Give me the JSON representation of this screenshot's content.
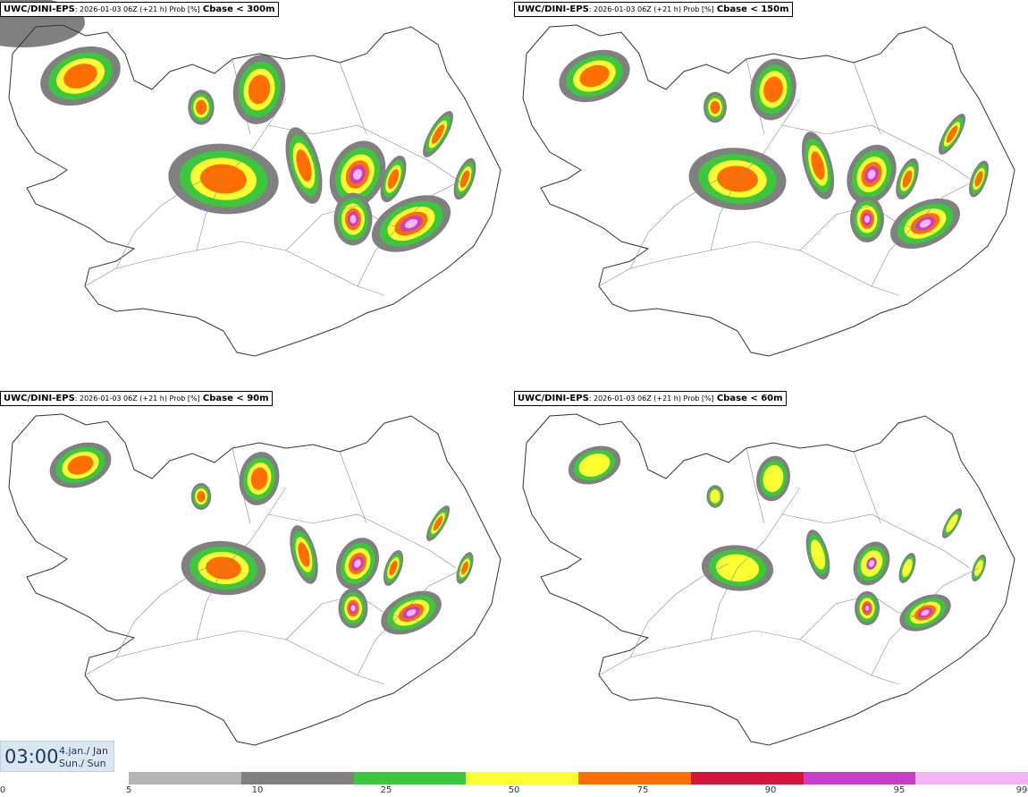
{
  "panels": [
    {
      "model": "UWC/DINI-EPS",
      "run": ": 2026-01-03 06Z (+21 h) Prob [%]",
      "variable": "Cbase < 300m",
      "level": 4
    },
    {
      "model": "UWC/DINI-EPS",
      "run": ": 2026-01-03 06Z (+21 h) Prob [%]",
      "variable": "Cbase < 150m",
      "level": 3
    },
    {
      "model": "UWC/DINI-EPS",
      "run": ": 2026-01-03 06Z (+21 h) Prob [%]",
      "variable": "Cbase < 90m",
      "level": 2
    },
    {
      "model": "UWC/DINI-EPS",
      "run": ": 2026-01-03 06Z (+21 h) Prob [%]",
      "variable": "Cbase < 60m",
      "level": 1
    }
  ],
  "valid_time": {
    "clock": "03:00",
    "date_line1": "4.jan./ Jan",
    "date_line2": "Sun./ Sun"
  },
  "colorbar": {
    "ticks": [
      "0",
      "5",
      "10",
      "25",
      "50",
      "75",
      "90",
      "95",
      "99"
    ],
    "colors": [
      "#ffffff",
      "#b4b4b4",
      "#808080",
      "#3cc83c",
      "#ffff32",
      "#ff6e00",
      "#d7143c",
      "#c83cc8",
      "#f5b4f5"
    ]
  }
}
